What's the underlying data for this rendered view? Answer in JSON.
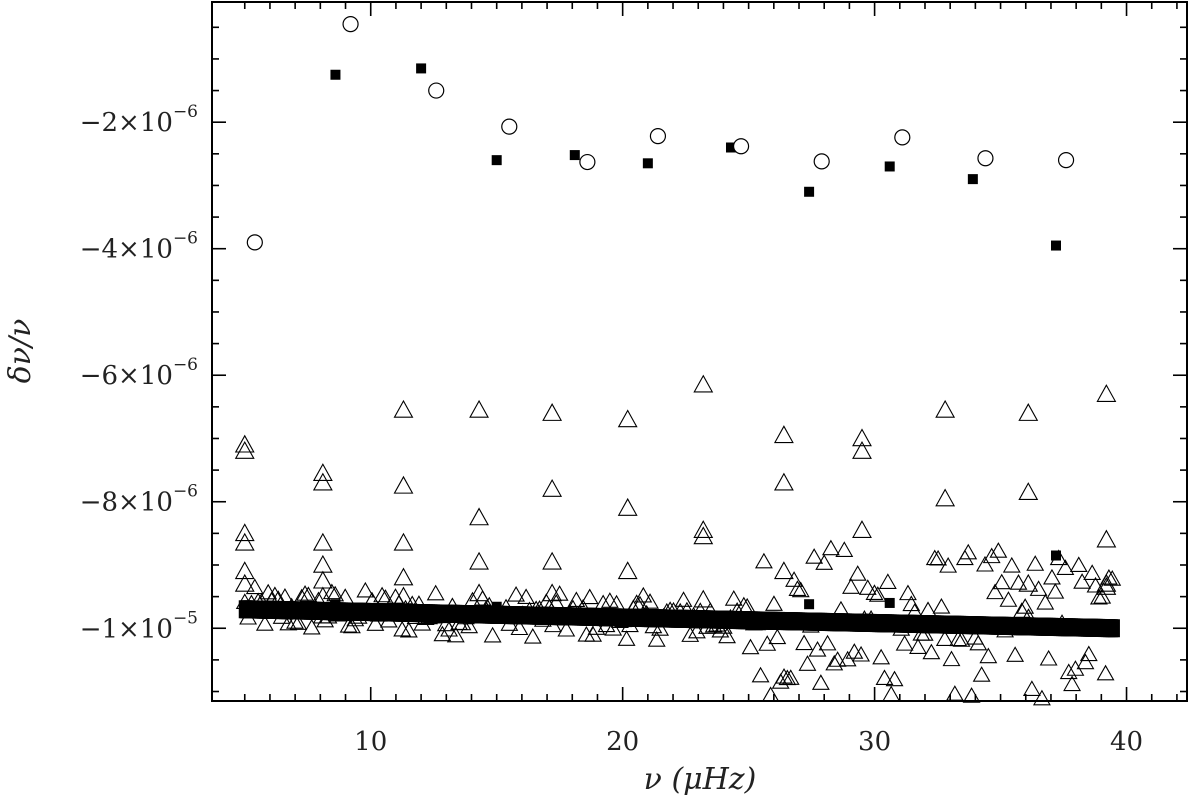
{
  "chart_data": {
    "type": "scatter",
    "title": "",
    "xlabel": "ν  (μHz)",
    "ylabel": "δν/ν",
    "xlim": [
      3.7,
      42.4
    ],
    "ylim": [
      -1.115e-05,
      -1e-07
    ],
    "x_major_ticks": [
      10,
      20,
      30,
      40
    ],
    "x_tick_labels": [
      "10",
      "20",
      "30",
      "40"
    ],
    "y_major_ticks": [
      -2e-06,
      -4e-06,
      -6e-06,
      -8e-06,
      -1e-05
    ],
    "y_tick_labels": [
      {
        "mant": "−2×10",
        "exp": "−6"
      },
      {
        "mant": "−4×10",
        "exp": "−6"
      },
      {
        "mant": "−6×10",
        "exp": "−6"
      },
      {
        "mant": "−8×10",
        "exp": "−6"
      },
      {
        "mant": "−1×10",
        "exp": "−5"
      }
    ],
    "grid": false,
    "series": [
      {
        "marker": "open-circle",
        "x": [
          5.4,
          9.2,
          12.6,
          15.5,
          18.6,
          21.4,
          24.7,
          27.9,
          31.1,
          34.4,
          37.6
        ],
        "y": [
          -3.9e-06,
          -4.5e-07,
          -1.5e-06,
          -2.07e-06,
          -2.63e-06,
          -2.22e-06,
          -2.38e-06,
          -2.62e-06,
          -2.24e-06,
          -2.57e-06,
          -2.6e-06
        ]
      },
      {
        "marker": "filled-square",
        "x": [
          8.6,
          12.0,
          15.0,
          18.1,
          21.0,
          24.3,
          27.4,
          30.6,
          33.9,
          37.2,
          37.2,
          8.6,
          15.0,
          27.4,
          30.6
        ],
        "y": [
          -1.25e-06,
          -1.15e-06,
          -2.6e-06,
          -2.52e-06,
          -2.65e-06,
          -2.4e-06,
          -3.1e-06,
          -2.7e-06,
          -2.9e-06,
          -3.95e-06,
          -8.85e-06,
          -9.62e-06,
          -9.66e-06,
          -9.62e-06,
          -9.6e-06
        ]
      },
      {
        "marker": "open-triangle",
        "x": [
          5.0,
          5.0,
          5.0,
          5.0,
          5.0,
          5.0,
          8.1,
          8.1,
          8.1,
          8.1,
          8.1,
          8.1,
          11.3,
          11.3,
          11.3,
          11.3,
          11.3,
          14.3,
          14.3,
          14.3,
          14.3,
          17.2,
          17.2,
          17.2,
          17.2,
          20.2,
          20.2,
          20.2,
          23.2,
          23.2,
          23.2,
          23.2,
          26.4,
          26.4,
          26.4,
          29.5,
          29.5,
          29.5,
          32.8,
          32.8,
          36.1,
          36.1,
          36.1,
          39.2,
          39.2,
          39.2,
          39.2
        ],
        "y": [
          -7.1e-06,
          -7.2e-06,
          -8.5e-06,
          -8.65e-06,
          -9.1e-06,
          -9.3e-06,
          -7.55e-06,
          -7.7e-06,
          -8.65e-06,
          -9e-06,
          -9.25e-06,
          -9.5e-06,
          -6.55e-06,
          -7.75e-06,
          -8.65e-06,
          -9.2e-06,
          -9.5e-06,
          -6.55e-06,
          -8.25e-06,
          -8.95e-06,
          -9.45e-06,
          -6.6e-06,
          -7.8e-06,
          -8.95e-06,
          -9.45e-06,
          -6.7e-06,
          -8.1e-06,
          -9.1e-06,
          -6.15e-06,
          -8.45e-06,
          -8.55e-06,
          -9.55e-06,
          -6.95e-06,
          -7.7e-06,
          -9.1e-06,
          -7e-06,
          -7.2e-06,
          -8.45e-06,
          -6.55e-06,
          -7.95e-06,
          -6.6e-06,
          -7.85e-06,
          -9.3e-06,
          -6.3e-06,
          -8.6e-06,
          -9.3e-06,
          -9.35e-06
        ]
      }
    ],
    "dense_band": {
      "x_range": [
        5.0,
        39.5
      ],
      "center_start": -9.7e-06,
      "center_end": -1e-05,
      "scatter_widening_after": 25
    }
  }
}
